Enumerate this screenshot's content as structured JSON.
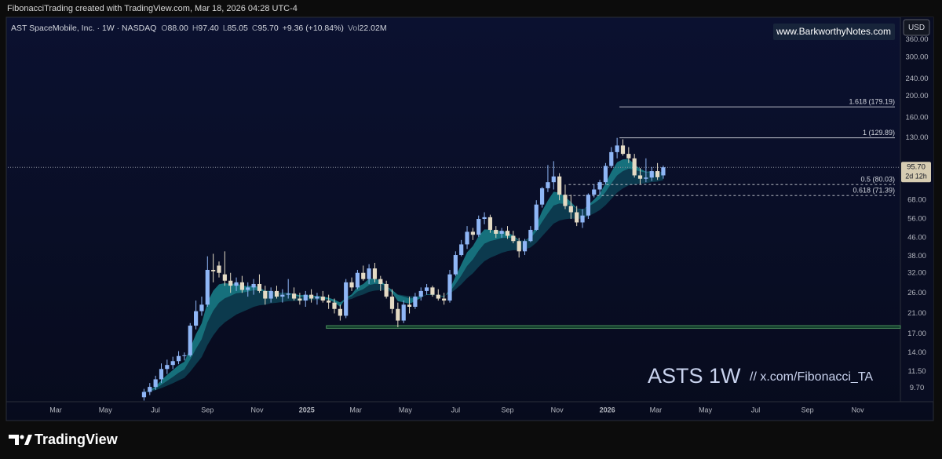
{
  "header": {
    "credit": "FibonacciTrading created with TradingView.com, Mar 18, 2026 04:28 UTC-4"
  },
  "chart_data": {
    "type": "candlestick",
    "legend": {
      "symbol": "AST SpaceMobile, Inc. · 1W · NASDAQ",
      "o_key": "O",
      "o": "88.00",
      "h_key": "H",
      "h": "97.40",
      "l_key": "L",
      "l": "85.05",
      "c_key": "C",
      "c": "95.70",
      "change": "+9.36 (+10.84%)",
      "vol_key": "Vol",
      "vol": "22.02M"
    },
    "currency": "USD",
    "watermark": "www.BarkworthyNotes.com",
    "annotation_title": "ASTS 1W",
    "annotation_handle": "//  x.com/Fibonacci_TA",
    "up_color": "#8fb6f6",
    "down_color": "#e4dac4",
    "log_scale": true,
    "grid": false,
    "ylim": [
      8.4,
      454
    ],
    "yticks": [
      {
        "value": 9.7,
        "label": "9.70"
      },
      {
        "value": 11.5,
        "label": "11.50"
      },
      {
        "value": 14,
        "label": "14.00"
      },
      {
        "value": 17,
        "label": "17.00"
      },
      {
        "value": 21,
        "label": "21.00"
      },
      {
        "value": 26,
        "label": "26.00"
      },
      {
        "value": 32,
        "label": "32.00"
      },
      {
        "value": 38,
        "label": "38.00"
      },
      {
        "value": 46,
        "label": "46.00"
      },
      {
        "value": 56,
        "label": "56.00"
      },
      {
        "value": 68,
        "label": "68.00"
      },
      {
        "value": 130,
        "label": "130.00"
      },
      {
        "value": 160,
        "label": "160.00"
      },
      {
        "value": 200,
        "label": "200.00"
      },
      {
        "value": 240,
        "label": "240.00"
      },
      {
        "value": 300,
        "label": "300.00"
      },
      {
        "value": 360,
        "label": "360.00"
      }
    ],
    "xlim": [
      0.4,
      155.1
    ],
    "xticks": [
      {
        "value": 8.7,
        "label": "Mar"
      },
      {
        "value": 17.3,
        "label": "May"
      },
      {
        "value": 26,
        "label": "Jul"
      },
      {
        "value": 35,
        "label": "Sep"
      },
      {
        "value": 43.6,
        "label": "Nov"
      },
      {
        "value": 52.2,
        "label": "2025"
      },
      {
        "value": 60.7,
        "label": "Mar"
      },
      {
        "value": 69.3,
        "label": "May"
      },
      {
        "value": 78,
        "label": "Jul"
      },
      {
        "value": 87,
        "label": "Sep"
      },
      {
        "value": 95.6,
        "label": "Nov"
      },
      {
        "value": 104.3,
        "label": "2026"
      },
      {
        "value": 112.7,
        "label": "Mar"
      },
      {
        "value": 121.3,
        "label": "May"
      },
      {
        "value": 130,
        "label": "Jul"
      },
      {
        "value": 139,
        "label": "Sep"
      },
      {
        "value": 147.7,
        "label": "Nov"
      }
    ],
    "x": [
      24,
      25,
      26,
      27,
      28,
      29,
      30,
      31,
      32,
      33,
      34,
      35,
      36,
      37,
      38,
      39,
      40,
      41,
      42,
      43,
      44,
      45,
      46,
      47,
      48,
      49,
      50,
      51,
      52,
      53,
      54,
      55,
      56,
      57,
      58,
      59,
      60,
      61,
      62,
      63,
      64,
      65,
      66,
      67,
      68,
      69,
      70,
      71,
      72,
      73,
      74,
      75,
      76,
      77,
      78,
      79,
      80,
      81,
      82,
      83,
      84,
      85,
      86,
      87,
      88,
      89,
      90,
      91,
      92,
      93,
      94,
      95,
      96,
      97,
      98,
      99,
      100,
      101,
      102,
      103,
      104,
      105,
      106,
      107,
      108,
      109,
      110,
      111,
      112,
      113,
      114
    ],
    "candles": [
      [
        8.8,
        9.6,
        8.5,
        9.3
      ],
      [
        9.3,
        10.2,
        9.0,
        9.8
      ],
      [
        9.8,
        11.0,
        9.5,
        10.6
      ],
      [
        10.6,
        12.5,
        10.2,
        11.8
      ],
      [
        11.8,
        13.0,
        11.2,
        12.3
      ],
      [
        12.3,
        13.4,
        11.8,
        12.8
      ],
      [
        12.8,
        14.2,
        12.4,
        13.5
      ],
      [
        13.5,
        14.0,
        12.9,
        13.6
      ],
      [
        13.6,
        19.0,
        13.4,
        18.5
      ],
      [
        18.5,
        24.0,
        17.8,
        21.5
      ],
      [
        21.5,
        25.0,
        20.5,
        23.0
      ],
      [
        23.0,
        38.0,
        22.5,
        33.0
      ],
      [
        33.0,
        39.0,
        29.0,
        32.5
      ],
      [
        34.5,
        36.0,
        30.5,
        32.0
      ],
      [
        31.5,
        40.0,
        28.0,
        29.5
      ],
      [
        29.5,
        32.0,
        26.0,
        28.0
      ],
      [
        28.0,
        30.5,
        26.5,
        29.0
      ],
      [
        29.0,
        31.0,
        26.0,
        26.8
      ],
      [
        26.8,
        29.0,
        25.0,
        27.5
      ],
      [
        27.5,
        30.0,
        25.5,
        28.5
      ],
      [
        28.5,
        31.5,
        26.0,
        26.5
      ],
      [
        26.5,
        28.0,
        23.0,
        24.5
      ],
      [
        24.5,
        27.5,
        23.5,
        26.5
      ],
      [
        26.5,
        28.0,
        24.5,
        25.0
      ],
      [
        25.0,
        27.0,
        23.5,
        25.5
      ],
      [
        25.5,
        30.0,
        24.5,
        25.8
      ],
      [
        25.8,
        27.5,
        24.0,
        24.5
      ],
      [
        24.5,
        26.0,
        23.0,
        24.0
      ],
      [
        24.0,
        26.5,
        22.5,
        25.5
      ],
      [
        25.5,
        27.0,
        23.5,
        24.5
      ],
      [
        24.5,
        26.0,
        23.0,
        25.0
      ],
      [
        25.0,
        26.5,
        23.5,
        24.0
      ],
      [
        24.0,
        25.5,
        22.0,
        23.5
      ],
      [
        23.5,
        24.5,
        21.0,
        22.0
      ],
      [
        22.0,
        23.0,
        19.5,
        20.5
      ],
      [
        20.5,
        30.0,
        20.0,
        29.0
      ],
      [
        29.0,
        30.5,
        26.5,
        27.5
      ],
      [
        27.5,
        33.0,
        27.0,
        32.0
      ],
      [
        32.0,
        34.5,
        29.5,
        30.0
      ],
      [
        30.0,
        35.0,
        28.5,
        33.5
      ],
      [
        33.5,
        35.5,
        29.0,
        30.0
      ],
      [
        30.0,
        31.0,
        26.5,
        28.5
      ],
      [
        28.5,
        29.5,
        24.5,
        25.0
      ],
      [
        25.0,
        27.0,
        21.0,
        22.0
      ],
      [
        22.0,
        23.5,
        18.2,
        19.5
      ],
      [
        19.5,
        24.0,
        19.0,
        23.0
      ],
      [
        23.0,
        25.0,
        21.0,
        22.5
      ],
      [
        22.5,
        26.0,
        22.0,
        25.0
      ],
      [
        25.0,
        27.5,
        24.0,
        26.5
      ],
      [
        26.5,
        28.5,
        25.5,
        27.5
      ],
      [
        27.5,
        28.0,
        25.0,
        25.5
      ],
      [
        25.5,
        27.0,
        24.0,
        24.5
      ],
      [
        24.5,
        26.0,
        23.0,
        24.0
      ],
      [
        24.0,
        33.0,
        23.5,
        31.5
      ],
      [
        31.5,
        40.0,
        31.0,
        38.5
      ],
      [
        38.5,
        45.0,
        38.0,
        43.0
      ],
      [
        43.0,
        52.0,
        41.0,
        49.0
      ],
      [
        49.0,
        51.0,
        45.0,
        47.5
      ],
      [
        47.5,
        58.0,
        46.5,
        56.0
      ],
      [
        56.0,
        60.0,
        53.0,
        57.0
      ],
      [
        57.0,
        58.5,
        48.5,
        50.0
      ],
      [
        50.0,
        52.0,
        46.0,
        48.0
      ],
      [
        48.0,
        51.0,
        46.0,
        49.5
      ],
      [
        49.5,
        52.0,
        45.5,
        47.0
      ],
      [
        47.0,
        49.5,
        43.5,
        44.5
      ],
      [
        44.5,
        46.0,
        37.5,
        40.0
      ],
      [
        40.0,
        45.5,
        38.5,
        44.5
      ],
      [
        44.5,
        52.0,
        44.0,
        50.0
      ],
      [
        50.0,
        68.0,
        49.5,
        65.0
      ],
      [
        65.0,
        78.0,
        63.0,
        77.0
      ],
      [
        77.0,
        98.0,
        74.0,
        82.0
      ],
      [
        82.0,
        102.0,
        76.0,
        87.0
      ],
      [
        87.0,
        90.0,
        68.0,
        72.0
      ],
      [
        72.0,
        80.0,
        62.0,
        64.0
      ],
      [
        64.0,
        72.0,
        56.0,
        60.0
      ],
      [
        60.0,
        64.0,
        52.0,
        54.0
      ],
      [
        54.0,
        62.0,
        51.0,
        58.0
      ],
      [
        58.0,
        73.0,
        56.0,
        72.0
      ],
      [
        72.0,
        80.0,
        70.0,
        76.0
      ],
      [
        76.0,
        84.0,
        72.0,
        82.0
      ],
      [
        82.0,
        100.0,
        80.0,
        97.0
      ],
      [
        97.0,
        118.0,
        95.0,
        112.0
      ],
      [
        112.0,
        129.89,
        105.0,
        120.0
      ],
      [
        120.0,
        128.0,
        108.0,
        110.0
      ],
      [
        110.0,
        118.0,
        100.0,
        105.0
      ],
      [
        105.0,
        110.0,
        86.0,
        88.0
      ],
      [
        88.0,
        95.0,
        80.03,
        85.0
      ],
      [
        85.0,
        105.0,
        82.0,
        86.0
      ],
      [
        86.0,
        96.0,
        83.0,
        92.0
      ],
      [
        92.0,
        100.0,
        84.0,
        86.32
      ],
      [
        88.0,
        97.4,
        85.05,
        95.7
      ]
    ],
    "fib_levels": [
      {
        "value": 179.19,
        "label": "1.618 (179.19)"
      },
      {
        "value": 129.89,
        "label": "1 (129.89)"
      },
      {
        "value": 80.03,
        "label": "0.5 (80.03)"
      },
      {
        "value": 71.39,
        "label": "0.618 (71.39)"
      }
    ],
    "support_zone": {
      "low": 18.0,
      "high": 18.5
    },
    "last_price": {
      "value": 95.7,
      "label": "95.70",
      "countdown": "2d 12h"
    }
  },
  "footer": {
    "brand": "TradingView"
  }
}
